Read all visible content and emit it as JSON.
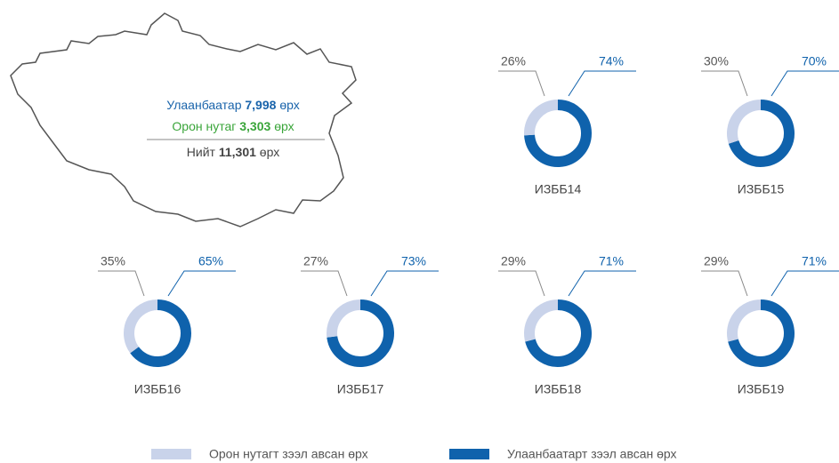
{
  "map_panel": {
    "lines": [
      {
        "label": "Улаанбаатар",
        "value": "7,998",
        "unit": "өрх",
        "color": "#1a64ab"
      },
      {
        "label": "Орон нутаг",
        "value": "3,303",
        "unit": "өрх",
        "color": "#3aa53a"
      },
      {
        "label": "Нийт",
        "value": "11,301",
        "unit": "өрх",
        "color": "#444444"
      }
    ]
  },
  "legend": {
    "categories": [
      "Орон нутагт зээл авсан өрх",
      "Улаанбаатарт зээл авсан өрх"
    ],
    "colors": [
      "#c9d3ea",
      "#0f62ac"
    ]
  },
  "chart_data": [
    {
      "type": "donut",
      "title": "ИЗББ14",
      "values": [
        26,
        74
      ],
      "value_labels": [
        "26%",
        "74%"
      ]
    },
    {
      "type": "donut",
      "title": "ИЗББ15",
      "values": [
        30,
        70
      ],
      "value_labels": [
        "30%",
        "70%"
      ]
    },
    {
      "type": "donut",
      "title": "ИЗББ16",
      "values": [
        35,
        65
      ],
      "value_labels": [
        "35%",
        "65%"
      ]
    },
    {
      "type": "donut",
      "title": "ИЗББ17",
      "values": [
        27,
        73
      ],
      "value_labels": [
        "27%",
        "73%"
      ]
    },
    {
      "type": "donut",
      "title": "ИЗББ18",
      "values": [
        29,
        71
      ],
      "value_labels": [
        "29%",
        "71%"
      ]
    },
    {
      "type": "donut",
      "title": "ИЗББ19",
      "values": [
        29,
        71
      ],
      "value_labels": [
        "29%",
        "71%"
      ]
    }
  ]
}
